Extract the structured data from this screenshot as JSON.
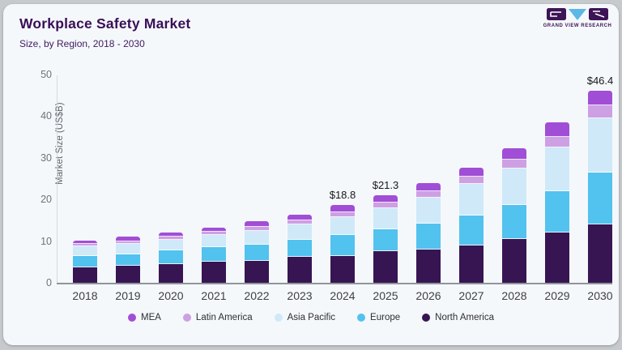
{
  "window": {
    "background": "#c7cacd",
    "card_background": "#f5f8fb"
  },
  "header": {
    "title": "Workplace Safety Market",
    "subtitle": "Size, by Region, 2018 - 2030",
    "title_color": "#3a0f56"
  },
  "logo": {
    "brand": "GRAND VIEW RESEARCH"
  },
  "chart_data": {
    "type": "bar",
    "stacked": true,
    "title": "Workplace Safety Market",
    "subtitle": "Size, by Region, 2018 - 2030",
    "xlabel": "",
    "ylabel": "Market Size (US$B)",
    "ylim": [
      0,
      50
    ],
    "yticks": [
      0,
      10,
      20,
      30,
      40,
      50
    ],
    "grid": false,
    "legend_position": "bottom",
    "categories": [
      "2018",
      "2019",
      "2020",
      "2021",
      "2022",
      "2023",
      "2024",
      "2025",
      "2026",
      "2027",
      "2028",
      "2029",
      "2030"
    ],
    "series": [
      {
        "name": "North America",
        "color": "#371553",
        "values": [
          3.9,
          4.2,
          4.7,
          5.2,
          5.5,
          6.4,
          6.7,
          7.7,
          8.1,
          9.2,
          10.7,
          12.3,
          14.3
        ]
      },
      {
        "name": "Europe",
        "color": "#52c2ee",
        "values": [
          2.7,
          2.9,
          3.2,
          3.5,
          3.8,
          4.2,
          4.9,
          5.4,
          6.3,
          7.1,
          8.1,
          9.9,
          12.3
        ]
      },
      {
        "name": "Asia Pacific",
        "color": "#cfe9f9",
        "values": [
          2.3,
          2.5,
          2.7,
          2.9,
          3.3,
          3.6,
          4.4,
          5.0,
          6.2,
          7.6,
          8.9,
          10.5,
          13.0
        ]
      },
      {
        "name": "Latin America",
        "color": "#cda0e4",
        "values": [
          0.6,
          0.6,
          0.7,
          0.8,
          1.0,
          1.0,
          1.2,
          1.4,
          1.5,
          1.7,
          2.0,
          2.5,
          3.2
        ]
      },
      {
        "name": "MEA",
        "color": "#a14ed6",
        "values": [
          0.9,
          1.0,
          1.0,
          1.1,
          1.3,
          1.4,
          1.6,
          1.8,
          2.1,
          2.3,
          2.9,
          3.5,
          3.6
        ]
      }
    ],
    "totals": [
      10.4,
      11.2,
      12.3,
      13.5,
      14.9,
      16.6,
      18.8,
      21.3,
      24.2,
      27.9,
      32.6,
      38.7,
      46.4
    ],
    "bar_labels": [
      "",
      "",
      "",
      "",
      "",
      "",
      "$18.8",
      "$21.3",
      "",
      "",
      "",
      "",
      "$46.4"
    ]
  },
  "legend": {
    "items": [
      {
        "label": "MEA",
        "color": "#a14ed6"
      },
      {
        "label": "Latin America",
        "color": "#cda0e4"
      },
      {
        "label": "Asia Pacific",
        "color": "#cfe9f9"
      },
      {
        "label": "Europe",
        "color": "#52c2ee"
      },
      {
        "label": "North America",
        "color": "#371553"
      }
    ]
  }
}
